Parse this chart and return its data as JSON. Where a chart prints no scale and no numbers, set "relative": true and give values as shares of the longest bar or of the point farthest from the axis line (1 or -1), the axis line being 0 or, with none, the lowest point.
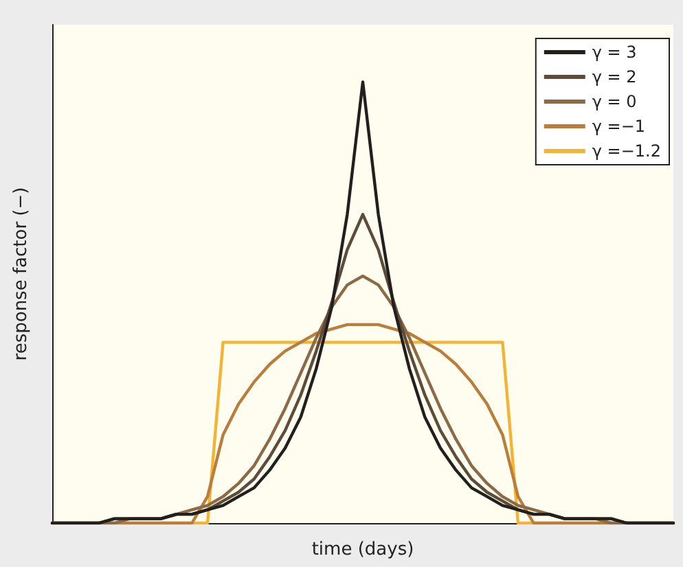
{
  "chart_data": {
    "type": "line",
    "relative": true,
    "xlabel": "time (days)",
    "ylabel": "response factor (−)",
    "categories": [
      null,
      null,
      null,
      null,
      null,
      null,
      null,
      null,
      null,
      null,
      null,
      null,
      null,
      null,
      null,
      null,
      null,
      null,
      null,
      null,
      null,
      null,
      null,
      null,
      null,
      null,
      null,
      null,
      null,
      null,
      null,
      null,
      null,
      null,
      null,
      null,
      null,
      null,
      null,
      null,
      null
    ],
    "series": [
      {
        "name": "γ = 3",
        "color": "#231f1c",
        "values": [
          0,
          0,
          0,
          0,
          0.01,
          0.01,
          0.01,
          0.01,
          0.02,
          0.02,
          0.03,
          0.04,
          0.06,
          0.08,
          0.12,
          0.17,
          0.24,
          0.35,
          0.49,
          0.7,
          1,
          0.7,
          0.49,
          0.35,
          0.24,
          0.17,
          0.12,
          0.08,
          0.06,
          0.04,
          0.03,
          0.02,
          0.02,
          0.01,
          0.01,
          0.01,
          0.01,
          0,
          0,
          0,
          0
        ]
      },
      {
        "name": "γ = 2",
        "color": "#5e4c3a",
        "values": [
          0,
          0,
          0,
          0,
          0.01,
          0.01,
          0.01,
          0.01,
          0.02,
          0.02,
          0.03,
          0.05,
          0.07,
          0.1,
          0.15,
          0.21,
          0.29,
          0.39,
          0.5,
          0.62,
          0.7,
          0.62,
          0.5,
          0.39,
          0.29,
          0.21,
          0.15,
          0.1,
          0.07,
          0.05,
          0.03,
          0.02,
          0.02,
          0.01,
          0.01,
          0.01,
          0.01,
          0,
          0,
          0,
          0
        ]
      },
      {
        "name": "γ = 0",
        "color": "#8b6a45",
        "values": [
          0,
          0,
          0,
          0,
          0,
          0.01,
          0.01,
          0.01,
          0.02,
          0.03,
          0.04,
          0.06,
          0.09,
          0.13,
          0.19,
          0.26,
          0.34,
          0.42,
          0.49,
          0.54,
          0.56,
          0.54,
          0.49,
          0.42,
          0.34,
          0.26,
          0.19,
          0.13,
          0.09,
          0.06,
          0.04,
          0.03,
          0.02,
          0.01,
          0.01,
          0.01,
          0,
          0,
          0,
          0,
          0
        ]
      },
      {
        "name": "γ =−1",
        "color": "#b97d3c",
        "values": [
          null,
          null,
          null,
          0,
          0,
          0,
          0,
          0,
          0,
          0,
          0.06,
          0.2,
          0.27,
          0.32,
          0.36,
          0.39,
          0.41,
          0.43,
          0.44,
          0.45,
          0.45,
          0.45,
          0.44,
          0.43,
          0.41,
          0.39,
          0.36,
          0.32,
          0.27,
          0.2,
          0.06,
          0,
          0,
          0,
          0,
          0,
          0,
          0,
          null,
          null,
          null
        ]
      },
      {
        "name": "γ =−1.2",
        "color": "#f5b335",
        "values": [
          null,
          null,
          null,
          null,
          0,
          0,
          0,
          0,
          0,
          0,
          0,
          0.41,
          0.41,
          0.41,
          0.41,
          0.41,
          0.41,
          0.41,
          0.41,
          0.41,
          0.41,
          0.41,
          0.41,
          0.41,
          0.41,
          0.41,
          0.41,
          0.41,
          0.41,
          0.41,
          0,
          0,
          0,
          0,
          0,
          0,
          0,
          null,
          null,
          null,
          null
        ]
      }
    ],
    "legend": "top right",
    "grid": false,
    "marker": "none",
    "line_style": "solid"
  }
}
